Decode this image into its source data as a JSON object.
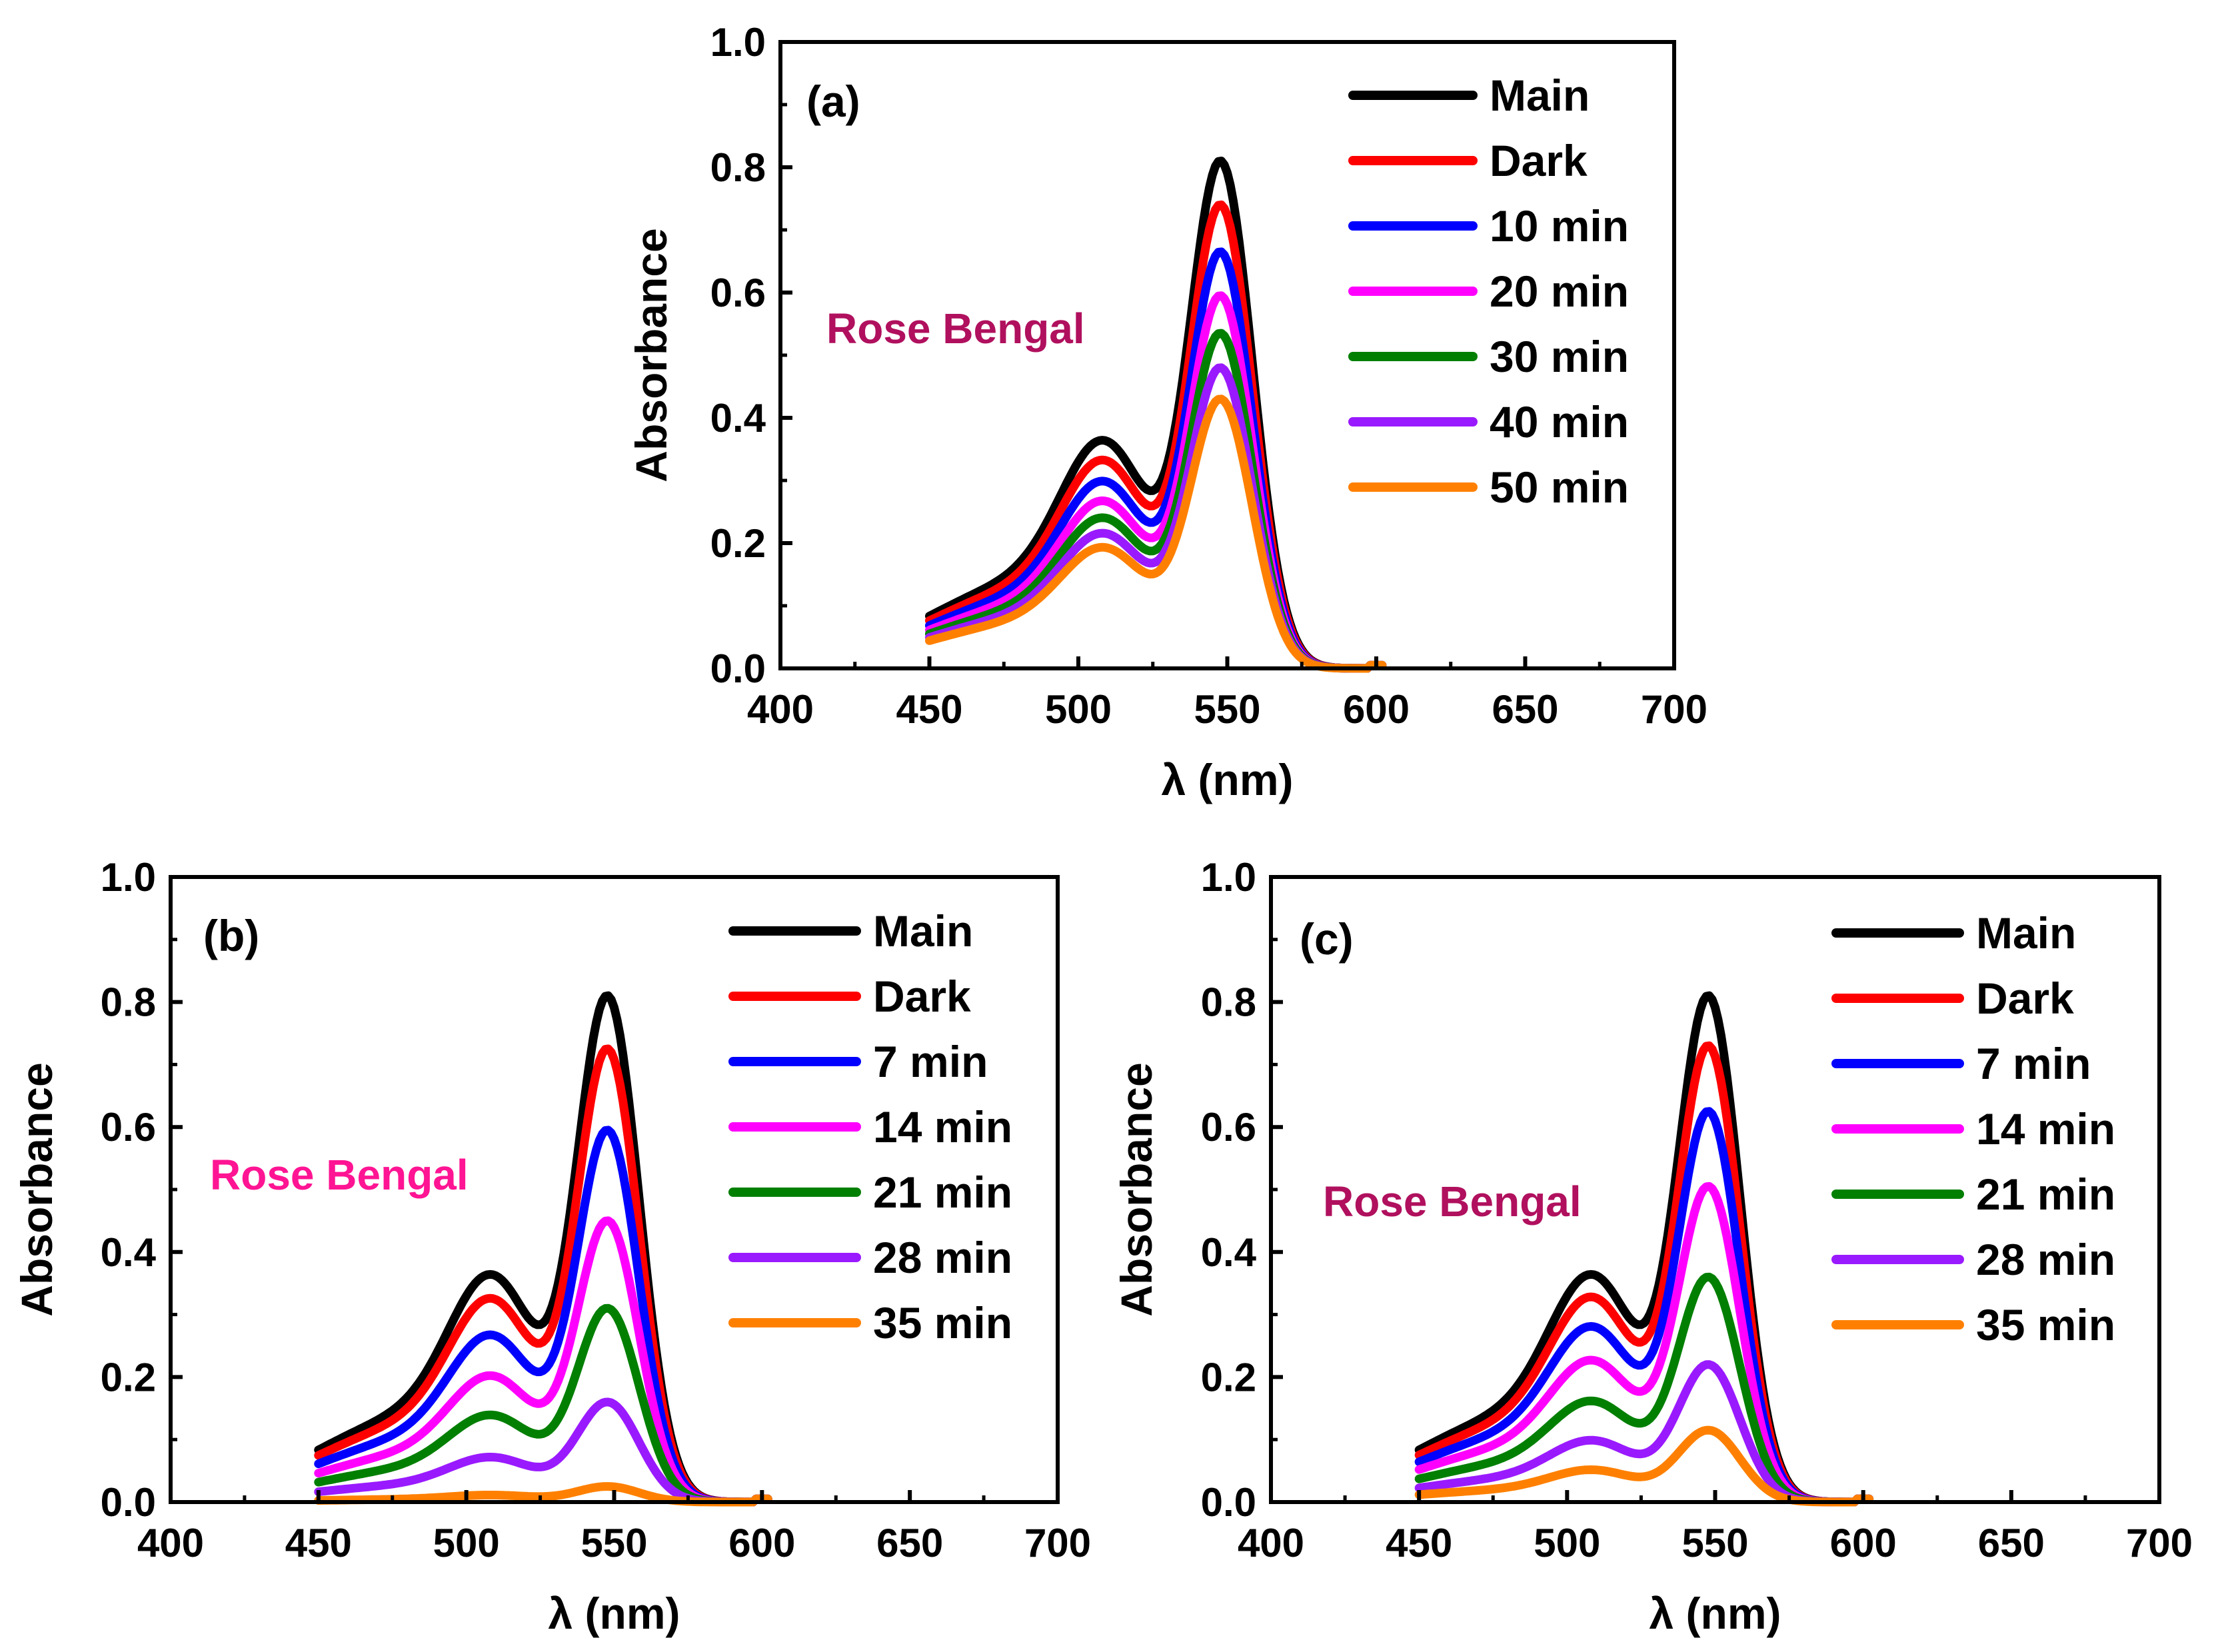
{
  "chart_data": [
    {
      "type": "line",
      "panel_label": "(a)",
      "annotation": "Rose Bengal",
      "annotation_color": "#b0105e",
      "xlabel": "λ (nm)",
      "ylabel": "Absorbance",
      "xlim": [
        400,
        700
      ],
      "ylim": [
        0,
        1.0
      ],
      "xticks": [
        400,
        450,
        500,
        550,
        600,
        650,
        700
      ],
      "yticks": [
        "0.0",
        "0.2",
        "0.4",
        "0.6",
        "0.8",
        "1.0"
      ],
      "grid": false,
      "legend_position": "top-right",
      "series": [
        {
          "name": "Main",
          "color": "#000000",
          "peak": 0.81
        },
        {
          "name": "Dark",
          "color": "#ff0000",
          "peak": 0.74
        },
        {
          "name": "10 min",
          "color": "#0000ff",
          "peak": 0.665
        },
        {
          "name": "20 min",
          "color": "#ff00ff",
          "peak": 0.595
        },
        {
          "name": "30 min",
          "color": "#007f00",
          "peak": 0.535
        },
        {
          "name": "40 min",
          "color": "#9a1aff",
          "peak": 0.48
        },
        {
          "name": "50 min",
          "color": "#ff8000",
          "peak": 0.43
        }
      ]
    },
    {
      "type": "line",
      "panel_label": "(b)",
      "annotation": "Rose Bengal",
      "annotation_color": "#ff1493",
      "xlabel": "λ (nm)",
      "ylabel": "Absorbance",
      "xlim": [
        400,
        700
      ],
      "ylim": [
        0,
        1.0
      ],
      "xticks": [
        400,
        450,
        500,
        550,
        600,
        650,
        700
      ],
      "yticks": [
        "0.0",
        "0.2",
        "0.4",
        "0.6",
        "0.8",
        "1.0"
      ],
      "grid": false,
      "legend_position": "top-right",
      "series": [
        {
          "name": "Main",
          "color": "#000000",
          "peak": 0.81
        },
        {
          "name": "Dark",
          "color": "#ff0000",
          "peak": 0.725
        },
        {
          "name": "7 min",
          "color": "#0000ff",
          "peak": 0.595
        },
        {
          "name": "14 min",
          "color": "#ff00ff",
          "peak": 0.45
        },
        {
          "name": "21 min",
          "color": "#007f00",
          "peak": 0.31
        },
        {
          "name": "28 min",
          "color": "#9a1aff",
          "peak": 0.16
        },
        {
          "name": "35 min",
          "color": "#ff8000",
          "peak": 0.025
        }
      ]
    },
    {
      "type": "line",
      "panel_label": "(c)",
      "annotation": "Rose Bengal",
      "annotation_color": "#b0105e",
      "xlabel": "λ (nm)",
      "ylabel": "Absorbance",
      "xlim": [
        400,
        700
      ],
      "ylim": [
        0,
        1.0
      ],
      "xticks": [
        400,
        450,
        500,
        550,
        600,
        650,
        700
      ],
      "yticks": [
        "0.0",
        "0.2",
        "0.4",
        "0.6",
        "0.8",
        "1.0"
      ],
      "grid": false,
      "legend_position": "top-right",
      "series": [
        {
          "name": "Main",
          "color": "#000000",
          "peak": 0.81
        },
        {
          "name": "Dark",
          "color": "#ff0000",
          "peak": 0.73
        },
        {
          "name": "7 min",
          "color": "#0000ff",
          "peak": 0.625
        },
        {
          "name": "14 min",
          "color": "#ff00ff",
          "peak": 0.505
        },
        {
          "name": "21 min",
          "color": "#007f00",
          "peak": 0.36
        },
        {
          "name": "28 min",
          "color": "#9a1aff",
          "peak": 0.22
        },
        {
          "name": "35 min",
          "color": "#ff8000",
          "peak": 0.115
        }
      ]
    }
  ]
}
